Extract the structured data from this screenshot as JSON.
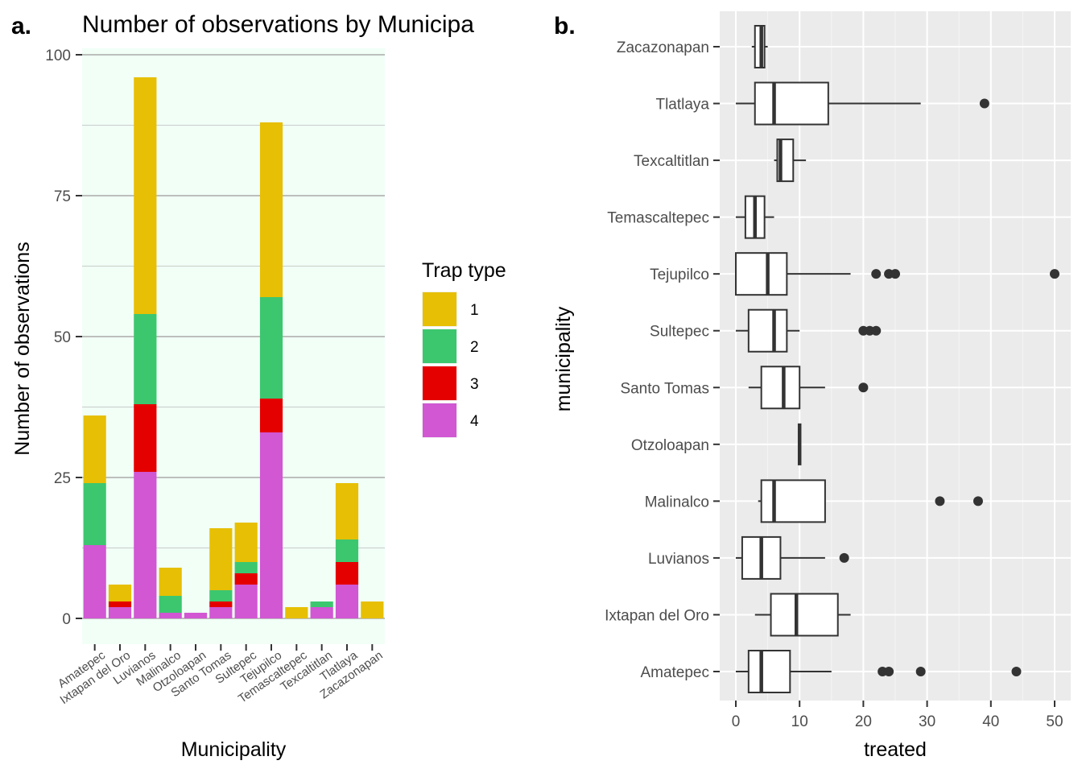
{
  "panel_a": {
    "tag": "a.",
    "chart_data": {
      "type": "bar",
      "stacked": true,
      "title": "Number of observations by Municipa",
      "xlabel": "Municipality",
      "ylabel": "Number of observations",
      "ylim": [
        0,
        100
      ],
      "yticks": [
        0,
        25,
        50,
        75,
        100
      ],
      "grid": true,
      "categories": [
        "Amatepec",
        "Ixtapan del Oro",
        "Luvianos",
        "Malinalco",
        "Otzoloapan",
        "Santo Tomas",
        "Sultepec",
        "Tejupilco",
        "Temascaltepec",
        "Texcaltitlan",
        "Tlatlaya",
        "Zacazonapan"
      ],
      "legend": {
        "title": "Trap type",
        "position": "right"
      },
      "series": [
        {
          "name": "1",
          "color": "#E7BF04",
          "values": [
            12,
            3,
            42,
            5,
            0,
            11,
            7,
            31,
            2,
            0,
            10,
            3
          ]
        },
        {
          "name": "2",
          "color": "#3CC76F",
          "values": [
            11,
            0,
            16,
            3,
            0,
            2,
            2,
            18,
            0,
            1,
            4,
            0
          ]
        },
        {
          "name": "3",
          "color": "#E50000",
          "values": [
            0,
            1,
            12,
            0,
            0,
            1,
            2,
            6,
            0,
            0,
            4,
            0
          ]
        },
        {
          "name": "4",
          "color": "#D157D3",
          "values": [
            13,
            2,
            26,
            1,
            1,
            2,
            6,
            33,
            0,
            2,
            6,
            0
          ]
        }
      ],
      "stack_order": [
        "4",
        "3",
        "2",
        "1"
      ]
    }
  },
  "panel_b": {
    "tag": "b.",
    "chart_data": {
      "type": "box",
      "orientation": "horizontal",
      "xlabel": "treated",
      "ylabel": "municipality",
      "xlim": [
        0,
        50
      ],
      "xticks": [
        0,
        10,
        20,
        30,
        40,
        50
      ],
      "grid": true,
      "categories": [
        "Zacazonapan",
        "Tlatlaya",
        "Texcaltitlan",
        "Temascaltepec",
        "Tejupilco",
        "Sultepec",
        "Santo Tomas",
        "Otzoloapan",
        "Malinalco",
        "Luvianos",
        "Ixtapan del Oro",
        "Amatepec"
      ],
      "boxes": [
        {
          "name": "Zacazonapan",
          "min": 2.5,
          "q1": 3,
          "median": 4,
          "q3": 4.5,
          "max": 5,
          "outliers": []
        },
        {
          "name": "Tlatlaya",
          "min": 0,
          "q1": 3,
          "median": 6,
          "q3": 14.5,
          "max": 29,
          "outliers": [
            39
          ]
        },
        {
          "name": "Texcaltitlan",
          "min": 6,
          "q1": 6.5,
          "median": 7,
          "q3": 9,
          "max": 11,
          "outliers": []
        },
        {
          "name": "Temascaltepec",
          "min": 0,
          "q1": 1.5,
          "median": 3,
          "q3": 4.5,
          "max": 6,
          "outliers": []
        },
        {
          "name": "Tejupilco",
          "min": 0,
          "q1": 0,
          "median": 5,
          "q3": 8,
          "max": 18,
          "outliers": [
            22,
            24,
            25,
            50
          ]
        },
        {
          "name": "Sultepec",
          "min": 0,
          "q1": 2,
          "median": 6,
          "q3": 8,
          "max": 10,
          "outliers": [
            20,
            21,
            22
          ]
        },
        {
          "name": "Santo Tomas",
          "min": 2,
          "q1": 4,
          "median": 7.5,
          "q3": 10,
          "max": 14,
          "outliers": [
            20
          ]
        },
        {
          "name": "Otzoloapan",
          "min": 10,
          "q1": 10,
          "median": 10,
          "q3": 10,
          "max": 10,
          "outliers": []
        },
        {
          "name": "Malinalco",
          "min": 3.5,
          "q1": 4,
          "median": 6,
          "q3": 14,
          "max": 14,
          "outliers": [
            32,
            38
          ]
        },
        {
          "name": "Luvianos",
          "min": 0,
          "q1": 1,
          "median": 4,
          "q3": 7,
          "max": 14,
          "outliers": [
            17
          ]
        },
        {
          "name": "Ixtapan del Oro",
          "min": 3,
          "q1": 5.5,
          "median": 9.5,
          "q3": 16,
          "max": 18,
          "outliers": []
        },
        {
          "name": "Amatepec",
          "min": 0,
          "q1": 2,
          "median": 4,
          "q3": 8.5,
          "max": 15,
          "outliers": [
            23,
            24,
            29,
            44
          ]
        }
      ]
    }
  }
}
